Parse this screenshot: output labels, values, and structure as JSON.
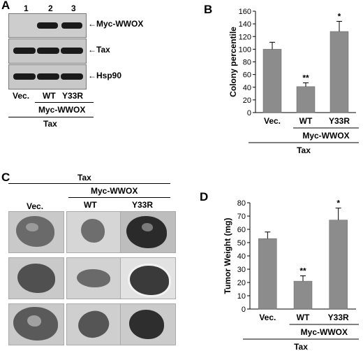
{
  "panels": {
    "a": "A",
    "b": "B",
    "c": "C",
    "d": "D"
  },
  "blot": {
    "lanes": [
      "1",
      "2",
      "3"
    ],
    "rows": [
      "Myc-WWOX",
      "Tax",
      "Hsp90"
    ],
    "groups": [
      "Vec.",
      "WT",
      "Y33R"
    ],
    "group_label": "Myc-WWOX",
    "bottom_label": "Tax"
  },
  "tissue": {
    "top_label": "Tax",
    "group_label": "Myc-WWOX",
    "columns": [
      "Vec.",
      "WT",
      "Y33R"
    ]
  },
  "chart_data": [
    {
      "type": "bar",
      "categories": [
        "Vec.",
        "WT",
        "Y33R"
      ],
      "values": [
        100,
        41,
        128
      ],
      "errors": [
        11,
        6,
        16
      ],
      "significance": [
        "",
        "**",
        "*"
      ],
      "ylabel": "Colony percentile",
      "ylim": [
        0,
        160
      ],
      "yticks": [
        0,
        20,
        40,
        60,
        80,
        100,
        120,
        140,
        160
      ],
      "group_label": "Myc-WWOX",
      "bottom_label": "Tax",
      "bar_color": "#8c8c8c"
    },
    {
      "type": "bar",
      "categories": [
        "Vec.",
        "WT",
        "Y33R"
      ],
      "values": [
        53,
        21,
        67
      ],
      "errors": [
        5,
        4,
        9
      ],
      "significance": [
        "",
        "**",
        "*"
      ],
      "ylabel": "Tumor Weight (mg)",
      "ylim": [
        0,
        80
      ],
      "yticks": [
        0,
        10,
        20,
        30,
        40,
        50,
        60,
        70,
        80
      ],
      "group_label": "Myc-WWOX",
      "bottom_label": "Tax",
      "bar_color": "#8c8c8c"
    }
  ]
}
